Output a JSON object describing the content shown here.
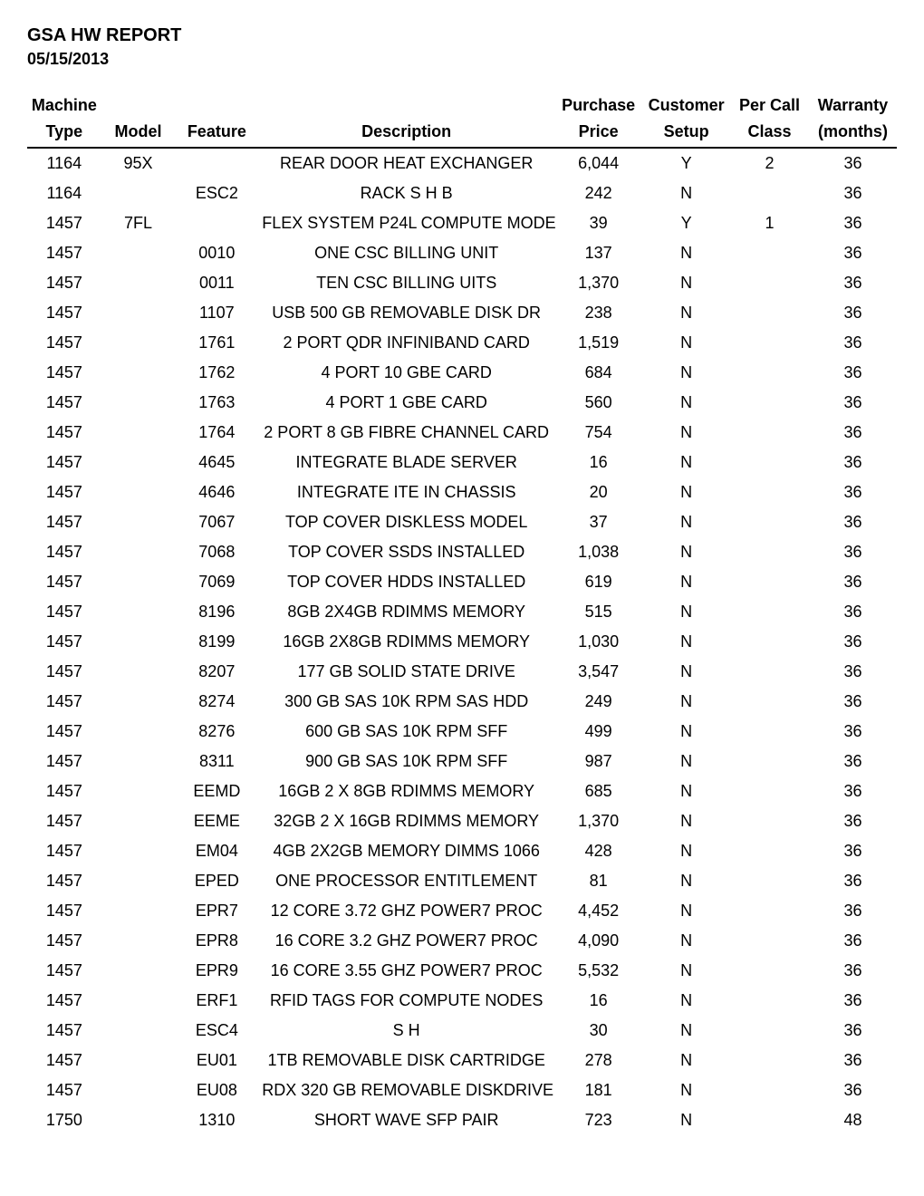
{
  "header": {
    "title": "GSA HW REPORT",
    "date": "05/15/2013"
  },
  "columns": {
    "machine_type_top": "Machine",
    "machine_type_bottom": "Type",
    "model": "Model",
    "feature": "Feature",
    "description": "Description",
    "purchase_top": "Purchase",
    "purchase_bottom": "Price",
    "customer_top": "Customer",
    "customer_bottom": "Setup",
    "percall_top": "Per Call",
    "percall_bottom": "Class",
    "warranty_top": "Warranty",
    "warranty_bottom": "(months)"
  },
  "rows": [
    {
      "type": "1164",
      "model": "95X",
      "feature": "",
      "description": "REAR DOOR HEAT EXCHANGER",
      "price": "6,044",
      "setup": "Y",
      "class": "2",
      "warranty": "36"
    },
    {
      "type": "1164",
      "model": "",
      "feature": "ESC2",
      "description": "RACK S H B",
      "price": "242",
      "setup": "N",
      "class": "",
      "warranty": "36"
    },
    {
      "type": "1457",
      "model": "7FL",
      "feature": "",
      "description": "FLEX SYSTEM P24L COMPUTE MODE",
      "price": "39",
      "setup": "Y",
      "class": "1",
      "warranty": "36"
    },
    {
      "type": "1457",
      "model": "",
      "feature": "0010",
      "description": "ONE CSC BILLING UNIT",
      "price": "137",
      "setup": "N",
      "class": "",
      "warranty": "36"
    },
    {
      "type": "1457",
      "model": "",
      "feature": "0011",
      "description": "TEN CSC BILLING UITS",
      "price": "1,370",
      "setup": "N",
      "class": "",
      "warranty": "36"
    },
    {
      "type": "1457",
      "model": "",
      "feature": "1107",
      "description": "USB 500 GB REMOVABLE DISK DR",
      "price": "238",
      "setup": "N",
      "class": "",
      "warranty": "36"
    },
    {
      "type": "1457",
      "model": "",
      "feature": "1761",
      "description": "2 PORT QDR INFINIBAND CARD",
      "price": "1,519",
      "setup": "N",
      "class": "",
      "warranty": "36"
    },
    {
      "type": "1457",
      "model": "",
      "feature": "1762",
      "description": "4 PORT 10 GBE CARD",
      "price": "684",
      "setup": "N",
      "class": "",
      "warranty": "36"
    },
    {
      "type": "1457",
      "model": "",
      "feature": "1763",
      "description": "4 PORT 1 GBE CARD",
      "price": "560",
      "setup": "N",
      "class": "",
      "warranty": "36"
    },
    {
      "type": "1457",
      "model": "",
      "feature": "1764",
      "description": "2 PORT 8 GB FIBRE CHANNEL CARD",
      "price": "754",
      "setup": "N",
      "class": "",
      "warranty": "36"
    },
    {
      "type": "1457",
      "model": "",
      "feature": "4645",
      "description": "INTEGRATE BLADE SERVER",
      "price": "16",
      "setup": "N",
      "class": "",
      "warranty": "36"
    },
    {
      "type": "1457",
      "model": "",
      "feature": "4646",
      "description": "INTEGRATE ITE IN CHASSIS",
      "price": "20",
      "setup": "N",
      "class": "",
      "warranty": "36"
    },
    {
      "type": "1457",
      "model": "",
      "feature": "7067",
      "description": "TOP COVER DISKLESS MODEL",
      "price": "37",
      "setup": "N",
      "class": "",
      "warranty": "36"
    },
    {
      "type": "1457",
      "model": "",
      "feature": "7068",
      "description": "TOP COVER SSDS INSTALLED",
      "price": "1,038",
      "setup": "N",
      "class": "",
      "warranty": "36"
    },
    {
      "type": "1457",
      "model": "",
      "feature": "7069",
      "description": "TOP COVER HDDS INSTALLED",
      "price": "619",
      "setup": "N",
      "class": "",
      "warranty": "36"
    },
    {
      "type": "1457",
      "model": "",
      "feature": "8196",
      "description": "8GB 2X4GB RDIMMS MEMORY",
      "price": "515",
      "setup": "N",
      "class": "",
      "warranty": "36"
    },
    {
      "type": "1457",
      "model": "",
      "feature": "8199",
      "description": "16GB 2X8GB RDIMMS MEMORY",
      "price": "1,030",
      "setup": "N",
      "class": "",
      "warranty": "36"
    },
    {
      "type": "1457",
      "model": "",
      "feature": "8207",
      "description": "177 GB SOLID STATE DRIVE",
      "price": "3,547",
      "setup": "N",
      "class": "",
      "warranty": "36"
    },
    {
      "type": "1457",
      "model": "",
      "feature": "8274",
      "description": "300 GB SAS 10K RPM SAS HDD",
      "price": "249",
      "setup": "N",
      "class": "",
      "warranty": "36"
    },
    {
      "type": "1457",
      "model": "",
      "feature": "8276",
      "description": "600 GB SAS 10K RPM SFF",
      "price": "499",
      "setup": "N",
      "class": "",
      "warranty": "36"
    },
    {
      "type": "1457",
      "model": "",
      "feature": "8311",
      "description": "900 GB SAS 10K RPM SFF",
      "price": "987",
      "setup": "N",
      "class": "",
      "warranty": "36"
    },
    {
      "type": "1457",
      "model": "",
      "feature": "EEMD",
      "description": "16GB 2 X 8GB RDIMMS MEMORY",
      "price": "685",
      "setup": "N",
      "class": "",
      "warranty": "36"
    },
    {
      "type": "1457",
      "model": "",
      "feature": "EEME",
      "description": "32GB 2 X 16GB RDIMMS MEMORY",
      "price": "1,370",
      "setup": "N",
      "class": "",
      "warranty": "36"
    },
    {
      "type": "1457",
      "model": "",
      "feature": "EM04",
      "description": "4GB 2X2GB MEMORY DIMMS 1066",
      "price": "428",
      "setup": "N",
      "class": "",
      "warranty": "36"
    },
    {
      "type": "1457",
      "model": "",
      "feature": "EPED",
      "description": "ONE PROCESSOR ENTITLEMENT",
      "price": "81",
      "setup": "N",
      "class": "",
      "warranty": "36"
    },
    {
      "type": "1457",
      "model": "",
      "feature": "EPR7",
      "description": "12 CORE 3.72 GHZ POWER7 PROC",
      "price": "4,452",
      "setup": "N",
      "class": "",
      "warranty": "36"
    },
    {
      "type": "1457",
      "model": "",
      "feature": "EPR8",
      "description": "16 CORE 3.2 GHZ POWER7 PROC",
      "price": "4,090",
      "setup": "N",
      "class": "",
      "warranty": "36"
    },
    {
      "type": "1457",
      "model": "",
      "feature": "EPR9",
      "description": "16 CORE 3.55 GHZ POWER7 PROC",
      "price": "5,532",
      "setup": "N",
      "class": "",
      "warranty": "36"
    },
    {
      "type": "1457",
      "model": "",
      "feature": "ERF1",
      "description": "RFID TAGS FOR COMPUTE NODES",
      "price": "16",
      "setup": "N",
      "class": "",
      "warranty": "36"
    },
    {
      "type": "1457",
      "model": "",
      "feature": "ESC4",
      "description": "S H",
      "price": "30",
      "setup": "N",
      "class": "",
      "warranty": "36"
    },
    {
      "type": "1457",
      "model": "",
      "feature": "EU01",
      "description": "1TB REMOVABLE DISK CARTRIDGE",
      "price": "278",
      "setup": "N",
      "class": "",
      "warranty": "36"
    },
    {
      "type": "1457",
      "model": "",
      "feature": "EU08",
      "description": "RDX 320 GB REMOVABLE DISKDRIVE",
      "price": "181",
      "setup": "N",
      "class": "",
      "warranty": "36"
    },
    {
      "type": "1750",
      "model": "",
      "feature": "1310",
      "description": "SHORT WAVE SFP PAIR",
      "price": "723",
      "setup": "N",
      "class": "",
      "warranty": "48"
    }
  ],
  "style": {
    "background_color": "#ffffff",
    "text_color": "#000000",
    "header_border_color": "#000000",
    "title_fontsize": 20,
    "date_fontsize": 18,
    "header_fontsize": 18,
    "cell_fontsize": 18
  }
}
